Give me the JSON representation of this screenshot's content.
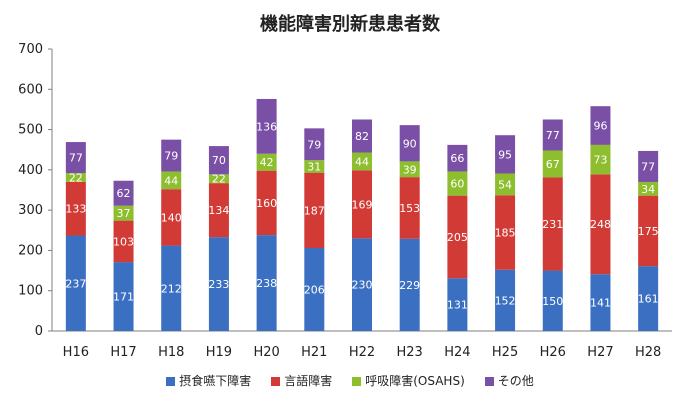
{
  "chart_data": {
    "type": "bar",
    "stacked": true,
    "title": "機能障害別新患患者数",
    "categories": [
      "H16",
      "H17",
      "H18",
      "H19",
      "H20",
      "H21",
      "H22",
      "H23",
      "H24",
      "H25",
      "H26",
      "H27",
      "H28"
    ],
    "series": [
      {
        "name": "摂食嚥下障害",
        "color": "#3a6fc2",
        "values": [
          237,
          171,
          212,
          233,
          238,
          206,
          230,
          229,
          131,
          152,
          150,
          141,
          161
        ]
      },
      {
        "name": "言語障害",
        "color": "#d23a36",
        "values": [
          133,
          103,
          140,
          134,
          160,
          187,
          169,
          153,
          205,
          185,
          231,
          248,
          175
        ]
      },
      {
        "name": "呼吸障害(OSAHS)",
        "color": "#8dbe2e",
        "values": [
          22,
          37,
          44,
          22,
          42,
          31,
          44,
          39,
          60,
          54,
          67,
          73,
          34
        ]
      },
      {
        "name": "その他",
        "color": "#7a4fa6",
        "values": [
          77,
          62,
          79,
          70,
          136,
          79,
          82,
          90,
          66,
          95,
          77,
          96,
          77
        ]
      }
    ],
    "ylim": [
      0,
      700
    ],
    "yticks": [
      0,
      100,
      200,
      300,
      400,
      500,
      600,
      700
    ],
    "grid": false,
    "legend_position": "bottom"
  }
}
